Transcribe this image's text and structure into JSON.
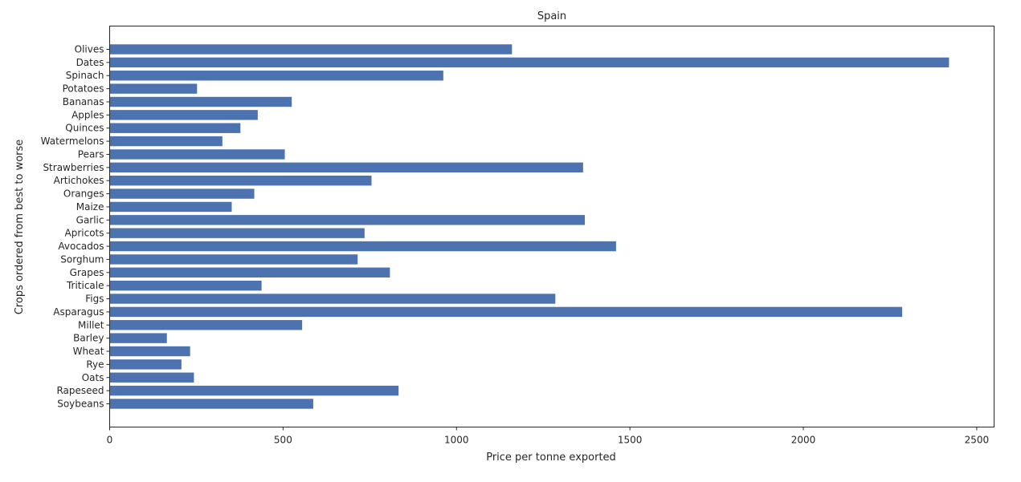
{
  "chart_data": {
    "type": "bar",
    "orientation": "horizontal",
    "title": "Spain",
    "xlabel": "Price per tonne exported",
    "ylabel": "Crops ordered from best to worse",
    "xlim": [
      0,
      2550
    ],
    "xticks": [
      0,
      500,
      1000,
      1500,
      2000,
      2500
    ],
    "bar_color": "#4c72b0",
    "grid": false,
    "categories": [
      "Olives",
      "Dates",
      "Spinach",
      "Potatoes",
      "Bananas",
      "Apples",
      "Quinces",
      "Watermelons",
      "Pears",
      "Strawberries",
      "Artichokes",
      "Oranges",
      "Maize",
      "Garlic",
      "Apricots",
      "Avocados",
      "Sorghum",
      "Grapes",
      "Triticale",
      "Figs",
      "Asparagus",
      "Millet",
      "Barley",
      "Wheat",
      "Rye",
      "Oats",
      "Rapeseed",
      "Soybeans"
    ],
    "values": [
      1160,
      2420,
      962,
      252,
      525,
      427,
      377,
      325,
      505,
      1365,
      755,
      417,
      352,
      1370,
      735,
      1460,
      715,
      808,
      438,
      1285,
      2285,
      555,
      165,
      232,
      207,
      243,
      833,
      587
    ]
  }
}
